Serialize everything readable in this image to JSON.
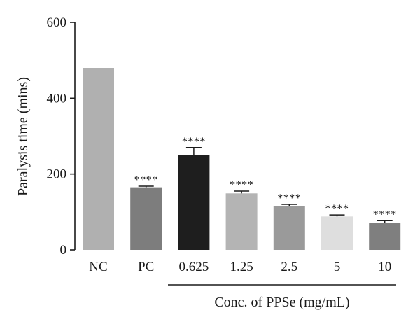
{
  "chart_data": {
    "type": "bar",
    "title": "",
    "xlabel": "",
    "ylabel": "Paralysis time (mins)",
    "ylim": [
      0,
      600
    ],
    "yticks": [
      0,
      200,
      400,
      600
    ],
    "grid": false,
    "categories": [
      "NC",
      "PC",
      "0.625",
      "1.25",
      "2.5",
      "5",
      "10"
    ],
    "values": [
      480,
      165,
      250,
      149,
      115,
      88,
      72
    ],
    "errors": [
      0,
      3,
      20,
      6,
      5,
      4,
      5
    ],
    "colors": [
      "#b0b0b0",
      "#7d7d7d",
      "#1e1e1e",
      "#b4b4b4",
      "#9a9a9a",
      "#dedede",
      "#7f7f7f"
    ],
    "annotations": [
      "",
      "****",
      "****",
      "****",
      "****",
      "****",
      "****"
    ],
    "group_label": "Conc. of PPSe (mg/mL)"
  }
}
